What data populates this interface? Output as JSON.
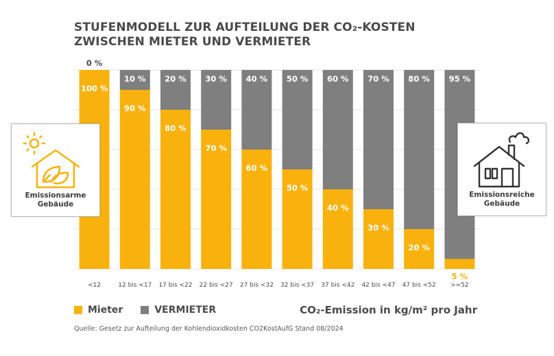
{
  "title_lines": [
    "STUFENMODELL ZUR AUFTEILUNG DER CO₂-KOSTEN",
    "ZWISCHEN MIETER UND VERMIETER"
  ],
  "colors": {
    "mieter": "#f9b20d",
    "vermieter": "#7f7f7f",
    "grid": "#e3e3e3",
    "label_on_bar": "#ffffff",
    "label_outside": "#4a4a4a",
    "label_highlight": "#f9b20d"
  },
  "chart_data": {
    "type": "bar",
    "stacked": true,
    "orientation": "vertical",
    "categories": [
      "<12",
      "12 bis <17",
      "17 bis <22",
      "22 bis <27",
      "27 bis <32",
      "32 bis <37",
      "37 bis <42",
      "42 bis <47",
      "47 bis <52",
      ">=52"
    ],
    "series": [
      {
        "name": "Mieter",
        "values": [
          100,
          90,
          80,
          70,
          60,
          50,
          40,
          30,
          20,
          5
        ],
        "labels": [
          "100 %",
          "90 %",
          "80 %",
          "70 %",
          "60 %",
          "50 %",
          "40 %",
          "30 %",
          "20 %",
          "5 %"
        ]
      },
      {
        "name": "VERMIETER",
        "values": [
          0,
          10,
          20,
          30,
          40,
          50,
          60,
          70,
          80,
          95
        ],
        "labels": [
          "0 %",
          "10 %",
          "20 %",
          "30 %",
          "40 %",
          "50 %",
          "60 %",
          "70 %",
          "80 %",
          "95 %"
        ]
      }
    ],
    "ylim": [
      0,
      100
    ],
    "grid": true,
    "legend_position": "bottom-left",
    "xlabel": "CO₂-Emission in kg/m² pro Jahr",
    "ylabel": ""
  },
  "legend": {
    "mieter": "Mieter",
    "vermieter": "VERMIETER"
  },
  "xaxis_title": "CO₂-Emission in kg/m² pro Jahr",
  "source": "Quelle: Gesetz zur Aufteilung der Kohlendioxidkosten CO2KostAufG  Stand 08/2024",
  "houses": {
    "left": {
      "icon": "house-leaf-sun-icon",
      "label_lines": [
        "Emissionsarme",
        "Gebäude"
      ]
    },
    "right": {
      "icon": "house-smoke-icon",
      "label_lines": [
        "Emissionsreiche",
        "Gebäude"
      ]
    }
  }
}
